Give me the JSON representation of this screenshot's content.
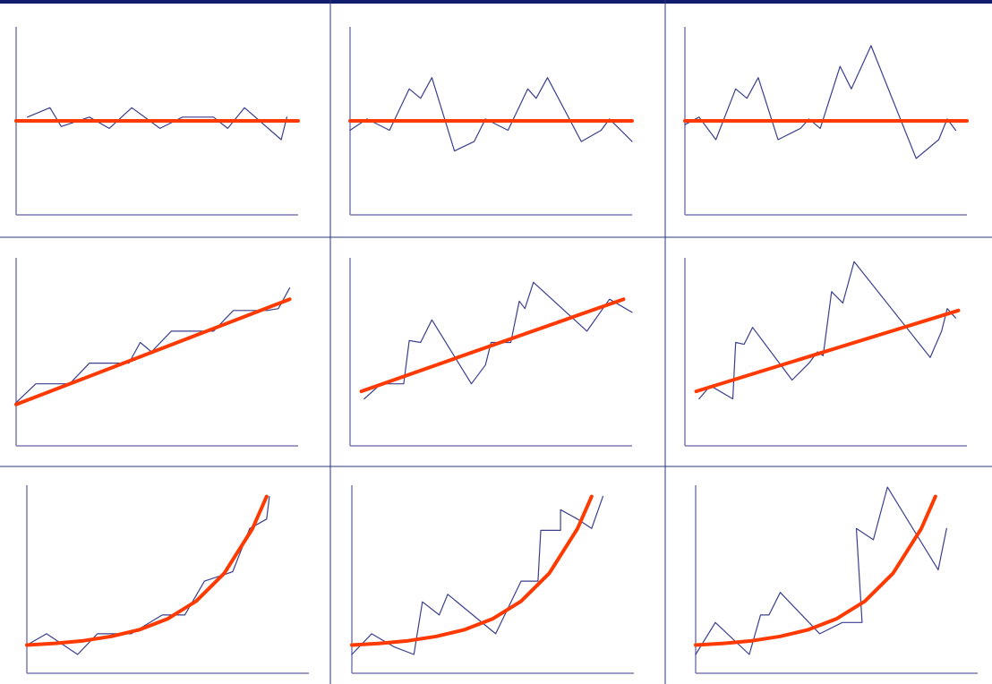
{
  "chart_data": [
    {
      "type": "line",
      "xlim": [
        0,
        100
      ],
      "ylim": [
        0,
        100
      ],
      "series": [
        {
          "color": "#3b3f8c",
          "x": [
            4,
            12,
            16,
            26,
            33,
            41,
            51,
            59,
            70,
            75,
            81,
            94,
            96
          ],
          "values": [
            52,
            57,
            47,
            52,
            46,
            57,
            46,
            52,
            52,
            46,
            57,
            40,
            52
          ]
        },
        {
          "color": "#ff3a00",
          "x": [
            0,
            100
          ],
          "values": [
            50,
            50
          ]
        }
      ]
    },
    {
      "type": "line",
      "xlim": [
        0,
        100
      ],
      "ylim": [
        0,
        100
      ],
      "series": [
        {
          "color": "#3b3f8c",
          "x": [
            0,
            6,
            14,
            21,
            25,
            29,
            37,
            44,
            48,
            56,
            63,
            66,
            70,
            82,
            89,
            92,
            100
          ],
          "values": [
            45,
            51,
            45,
            67,
            62,
            73,
            34,
            39,
            51,
            45,
            67,
            62,
            73,
            39,
            45,
            51,
            39
          ]
        },
        {
          "color": "#ff3a00",
          "x": [
            0,
            100
          ],
          "values": [
            50,
            50
          ]
        }
      ]
    },
    {
      "type": "line",
      "xlim": [
        0,
        100
      ],
      "ylim": [
        0,
        100
      ],
      "series": [
        {
          "color": "#3b3f8c",
          "x": [
            0,
            5,
            11,
            18,
            22,
            26,
            33,
            41,
            44,
            48,
            55,
            59,
            66,
            82,
            90,
            93,
            96
          ],
          "values": [
            48,
            52,
            40,
            67,
            62,
            73,
            40,
            46,
            51,
            46,
            79,
            67,
            90,
            30,
            40,
            51,
            45
          ]
        },
        {
          "color": "#ff3a00",
          "x": [
            0,
            100
          ],
          "values": [
            50,
            50
          ]
        }
      ]
    },
    {
      "type": "line",
      "xlim": [
        0,
        100
      ],
      "ylim": [
        0,
        100
      ],
      "series": [
        {
          "color": "#3b3f8c",
          "x": [
            0,
            7,
            19,
            26,
            40,
            44,
            48,
            55,
            70,
            77,
            89,
            93,
            97
          ],
          "values": [
            23,
            33,
            33,
            44,
            44,
            55,
            50,
            61,
            61,
            72,
            72,
            73,
            84
          ]
        },
        {
          "color": "#ff3a00",
          "x": [
            0,
            97
          ],
          "values": [
            22,
            78
          ]
        }
      ]
    },
    {
      "type": "line",
      "xlim": [
        0,
        100
      ],
      "ylim": [
        0,
        100
      ],
      "series": [
        {
          "color": "#3b3f8c",
          "x": [
            5,
            11,
            19,
            21,
            25,
            29,
            43,
            48,
            50,
            55,
            57,
            60,
            62,
            65,
            84,
            92,
            100
          ],
          "values": [
            25,
            33,
            33,
            56,
            55,
            67,
            33,
            43,
            55,
            55,
            55,
            77,
            73,
            87,
            61,
            78,
            71
          ]
        },
        {
          "color": "#ff3a00",
          "x": [
            4,
            97
          ],
          "values": [
            29,
            78
          ]
        }
      ]
    },
    {
      "type": "line",
      "xlim": [
        0,
        100
      ],
      "ylim": [
        0,
        100
      ],
      "series": [
        {
          "color": "#3b3f8c",
          "x": [
            5,
            9,
            17,
            18,
            21,
            24,
            38,
            44,
            47,
            49,
            52,
            56,
            60,
            87,
            91,
            93,
            96
          ],
          "values": [
            25,
            32,
            25,
            55,
            54,
            63,
            35,
            44,
            50,
            48,
            82,
            76,
            98,
            47,
            61,
            73,
            68
          ]
        },
        {
          "color": "#ff3a00",
          "x": [
            4,
            97
          ],
          "values": [
            29,
            72
          ]
        }
      ]
    },
    {
      "type": "line",
      "xlim": [
        0,
        100
      ],
      "ylim": [
        0,
        100
      ],
      "series": [
        {
          "color": "#3b3f8c",
          "x": [
            0,
            7,
            18,
            25,
            37,
            48,
            56,
            63,
            73,
            79,
            85,
            86
          ],
          "values": [
            15,
            21,
            10,
            21,
            21,
            31,
            31,
            49,
            54,
            77,
            82,
            94
          ]
        },
        {
          "color": "#ff3a00",
          "x": [
            0,
            10,
            20,
            30,
            40,
            50,
            60,
            70,
            80,
            85
          ],
          "values": [
            15,
            15.9,
            17.3,
            19.6,
            23.2,
            29,
            38.3,
            53.2,
            76.9,
            94
          ]
        }
      ]
    },
    {
      "type": "line",
      "xlim": [
        0,
        100
      ],
      "ylim": [
        0,
        100
      ],
      "series": [
        {
          "color": "#3b3f8c",
          "x": [
            0,
            7,
            15,
            22,
            25,
            31,
            34,
            51,
            60,
            66,
            67,
            74,
            74,
            80,
            85,
            89
          ],
          "values": [
            10,
            21,
            14,
            10,
            38,
            31,
            42,
            21,
            49,
            49,
            76,
            76,
            87,
            82,
            77,
            94
          ]
        },
        {
          "color": "#ff3a00",
          "x": [
            0,
            10,
            20,
            30,
            40,
            50,
            60,
            70,
            80,
            85
          ],
          "values": [
            15,
            15.9,
            17.3,
            19.6,
            23.2,
            29,
            38.3,
            53.2,
            76.9,
            94
          ]
        }
      ]
    },
    {
      "type": "line",
      "xlim": [
        0,
        100
      ],
      "ylim": [
        0,
        100
      ],
      "series": [
        {
          "color": "#3b3f8c",
          "x": [
            0,
            7,
            19,
            23,
            26,
            30,
            44,
            52,
            59,
            57,
            63,
            68,
            86,
            89
          ],
          "values": [
            10,
            27,
            10,
            31,
            31,
            43,
            21,
            27,
            27,
            77,
            71,
            99,
            55,
            77
          ]
        },
        {
          "color": "#ff3a00",
          "x": [
            0,
            10,
            20,
            30,
            40,
            50,
            60,
            70,
            80,
            85
          ],
          "values": [
            15,
            15.9,
            17.3,
            19.6,
            23.2,
            29,
            38.3,
            53.2,
            76.9,
            94
          ]
        }
      ]
    }
  ]
}
